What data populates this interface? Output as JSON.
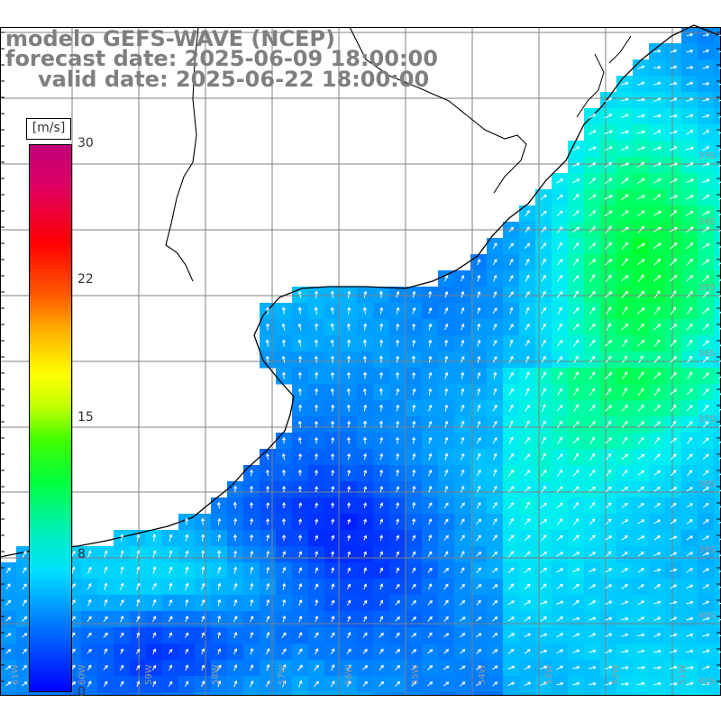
{
  "title": {
    "line1": "modelo GEFS-WAVE (NCEP)",
    "line2": "forecast date: 2025-06-09 18:00:00",
    "line3": "valid date: 2025-06-22 18:00:00"
  },
  "colorbar": {
    "unit": "[m/s]",
    "labels": [
      "30",
      "22",
      "15",
      "8",
      "0"
    ],
    "colors": [
      "#0000ff",
      "#00e0ff",
      "#00ff40",
      "#ffff00",
      "#ff0000",
      "#c0007a"
    ]
  },
  "map": {
    "lat_labels": [
      "33S",
      "34S",
      "35S",
      "36S",
      "37S",
      "38S",
      "39S",
      "40S",
      "41S"
    ],
    "lon_labels": [
      "61W",
      "60W",
      "59W",
      "58W",
      "57W",
      "56W",
      "55W",
      "54W",
      "53W",
      "52W",
      "51W"
    ],
    "arrow_color": "#ffffff",
    "grid_color": "#808080",
    "coast_color": "#000000"
  }
}
